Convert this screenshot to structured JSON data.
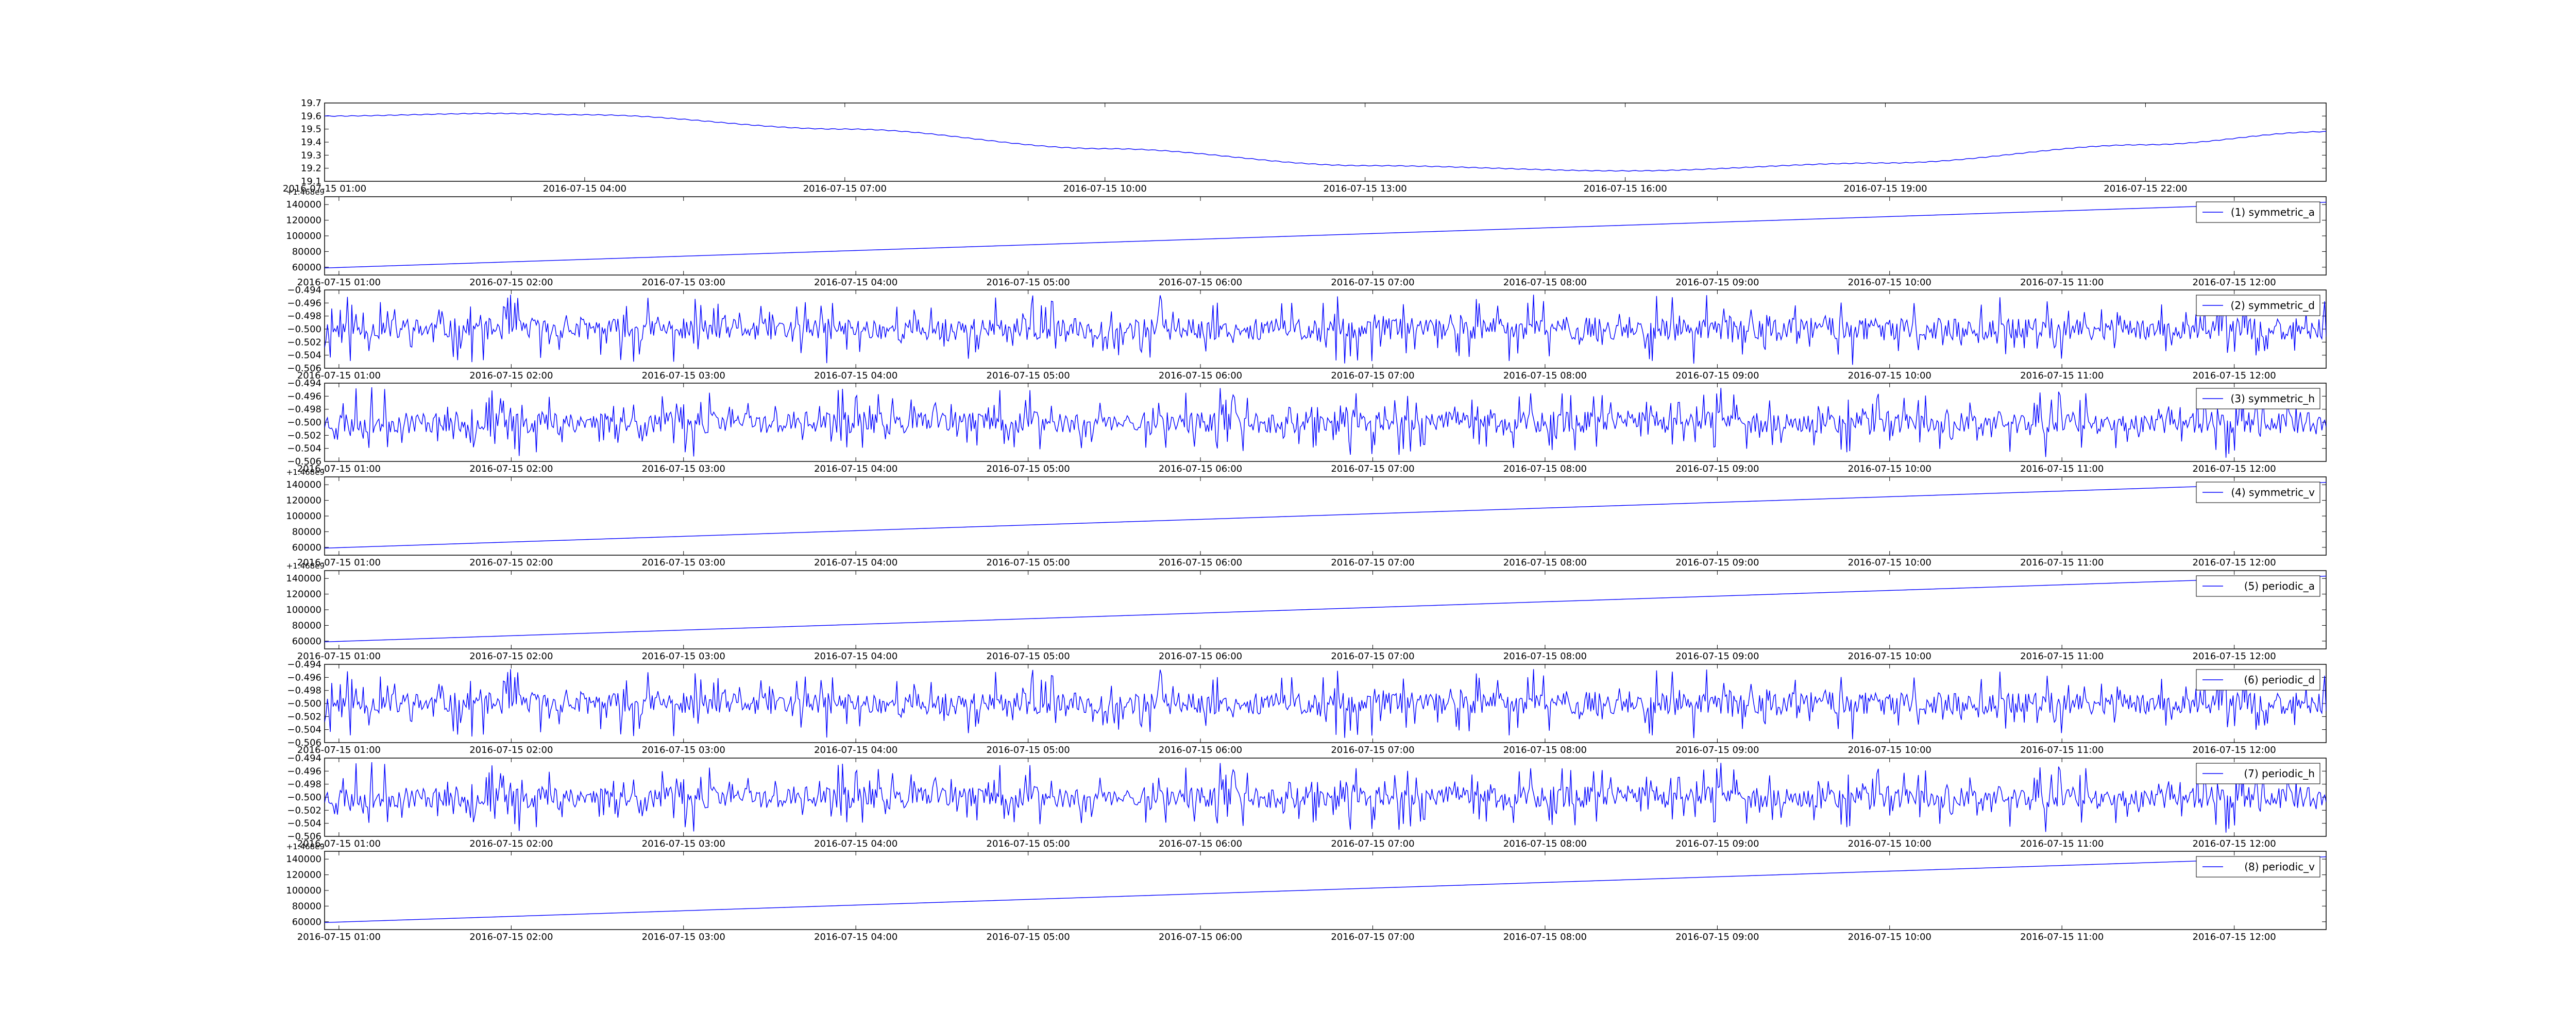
{
  "figure": {
    "background": "#ffffff",
    "line_color": "#0000ff"
  },
  "chart_data": [
    {
      "type": "line",
      "title": "",
      "xlabel": "",
      "ylabel": "",
      "ylim": [
        19.1,
        19.7
      ],
      "y_ticks": [
        "19.1",
        "19.2",
        "19.3",
        "19.4",
        "19.5",
        "19.6",
        "19.7"
      ],
      "x_ticks": [
        "2016-07-15 01:00",
        "2016-07-15 04:00",
        "2016-07-15 07:00",
        "2016-07-15 10:00",
        "2016-07-15 13:00",
        "2016-07-15 16:00",
        "2016-07-15 19:00",
        "2016-07-15 22:00"
      ],
      "x_range": [
        "2016-07-15 01:00",
        "2016-07-16 00:05"
      ],
      "offset_text": "",
      "legend": null,
      "series": [
        {
          "x": [
            "2016-07-15 01:00",
            "2016-07-15 03:00",
            "2016-07-15 04:00",
            "2016-07-15 07:00",
            "2016-07-15 10:00",
            "2016-07-15 13:00",
            "2016-07-15 16:00",
            "2016-07-15 19:00",
            "2016-07-15 22:00",
            "2016-07-16 00:05"
          ],
          "y": [
            19.6,
            19.62,
            19.61,
            19.5,
            19.35,
            19.22,
            19.18,
            19.24,
            19.38,
            19.48
          ]
        }
      ]
    },
    {
      "type": "line",
      "title": "",
      "ylim": [
        50000,
        150000
      ],
      "y_ticks": [
        "60000",
        "80000",
        "100000",
        "120000",
        "140000"
      ],
      "x_ticks": [
        "2016-07-15 01:00",
        "2016-07-15 02:00",
        "2016-07-15 03:00",
        "2016-07-15 04:00",
        "2016-07-15 05:00",
        "2016-07-15 06:00",
        "2016-07-15 07:00",
        "2016-07-15 08:00",
        "2016-07-15 09:00",
        "2016-07-15 10:00",
        "2016-07-15 11:00",
        "2016-07-15 12:00"
      ],
      "x_range": [
        "2016-07-15 00:55",
        "2016-07-15 12:32"
      ],
      "offset_text": "+1.468e9",
      "legend": "(1) symmetric_a",
      "legend_position": "top-right",
      "series": [
        {
          "x": [
            "2016-07-15 00:55",
            "2016-07-15 12:32"
          ],
          "y": [
            59000,
            143000
          ]
        }
      ]
    },
    {
      "type": "line",
      "title": "",
      "ylim": [
        -0.506,
        -0.494
      ],
      "y_ticks": [
        "−0.506",
        "−0.504",
        "−0.502",
        "−0.500",
        "−0.498",
        "−0.496",
        "−0.494"
      ],
      "x_ticks": [
        "2016-07-15 01:00",
        "2016-07-15 02:00",
        "2016-07-15 03:00",
        "2016-07-15 04:00",
        "2016-07-15 05:00",
        "2016-07-15 06:00",
        "2016-07-15 07:00",
        "2016-07-15 08:00",
        "2016-07-15 09:00",
        "2016-07-15 10:00",
        "2016-07-15 11:00",
        "2016-07-15 12:00"
      ],
      "x_range": [
        "2016-07-15 00:55",
        "2016-07-15 12:32"
      ],
      "offset_text": "",
      "legend": "(2) symmetric_d",
      "legend_position": "top-right",
      "series": [
        {
          "noise": {
            "center": -0.5,
            "amplitude": 0.0055,
            "points": 1400,
            "seed": 11
          }
        }
      ]
    },
    {
      "type": "line",
      "title": "",
      "ylim": [
        -0.506,
        -0.494
      ],
      "y_ticks": [
        "−0.506",
        "−0.504",
        "−0.502",
        "−0.500",
        "−0.498",
        "−0.496",
        "−0.494"
      ],
      "x_ticks": [
        "2016-07-15 01:00",
        "2016-07-15 02:00",
        "2016-07-15 03:00",
        "2016-07-15 04:00",
        "2016-07-15 05:00",
        "2016-07-15 06:00",
        "2016-07-15 07:00",
        "2016-07-15 08:00",
        "2016-07-15 09:00",
        "2016-07-15 10:00",
        "2016-07-15 11:00",
        "2016-07-15 12:00"
      ],
      "x_range": [
        "2016-07-15 00:55",
        "2016-07-15 12:32"
      ],
      "offset_text": "",
      "legend": "(3) symmetric_h",
      "legend_position": "top-right",
      "series": [
        {
          "noise": {
            "center": -0.5,
            "amplitude": 0.0055,
            "points": 1400,
            "seed": 23
          }
        }
      ]
    },
    {
      "type": "line",
      "title": "",
      "ylim": [
        50000,
        150000
      ],
      "y_ticks": [
        "60000",
        "80000",
        "100000",
        "120000",
        "140000"
      ],
      "x_ticks": [
        "2016-07-15 01:00",
        "2016-07-15 02:00",
        "2016-07-15 03:00",
        "2016-07-15 04:00",
        "2016-07-15 05:00",
        "2016-07-15 06:00",
        "2016-07-15 07:00",
        "2016-07-15 08:00",
        "2016-07-15 09:00",
        "2016-07-15 10:00",
        "2016-07-15 11:00",
        "2016-07-15 12:00"
      ],
      "x_range": [
        "2016-07-15 00:55",
        "2016-07-15 12:32"
      ],
      "offset_text": "+1.468e9",
      "legend": "(4) symmetric_v",
      "legend_position": "top-right",
      "series": [
        {
          "x": [
            "2016-07-15 00:55",
            "2016-07-15 12:32"
          ],
          "y": [
            59000,
            143000
          ]
        }
      ]
    },
    {
      "type": "line",
      "title": "",
      "ylim": [
        50000,
        150000
      ],
      "y_ticks": [
        "60000",
        "80000",
        "100000",
        "120000",
        "140000"
      ],
      "x_ticks": [
        "2016-07-15 01:00",
        "2016-07-15 02:00",
        "2016-07-15 03:00",
        "2016-07-15 04:00",
        "2016-07-15 05:00",
        "2016-07-15 06:00",
        "2016-07-15 07:00",
        "2016-07-15 08:00",
        "2016-07-15 09:00",
        "2016-07-15 10:00",
        "2016-07-15 11:00",
        "2016-07-15 12:00"
      ],
      "x_range": [
        "2016-07-15 00:55",
        "2016-07-15 12:32"
      ],
      "offset_text": "+1.468e9",
      "legend": "(5) periodic_a",
      "legend_position": "top-right",
      "series": [
        {
          "x": [
            "2016-07-15 00:55",
            "2016-07-15 12:32"
          ],
          "y": [
            59000,
            143000
          ]
        }
      ]
    },
    {
      "type": "line",
      "title": "",
      "ylim": [
        -0.506,
        -0.494
      ],
      "y_ticks": [
        "−0.506",
        "−0.504",
        "−0.502",
        "−0.500",
        "−0.498",
        "−0.496",
        "−0.494"
      ],
      "x_ticks": [
        "2016-07-15 01:00",
        "2016-07-15 02:00",
        "2016-07-15 03:00",
        "2016-07-15 04:00",
        "2016-07-15 05:00",
        "2016-07-15 06:00",
        "2016-07-15 07:00",
        "2016-07-15 08:00",
        "2016-07-15 09:00",
        "2016-07-15 10:00",
        "2016-07-15 11:00",
        "2016-07-15 12:00"
      ],
      "x_range": [
        "2016-07-15 00:55",
        "2016-07-15 12:32"
      ],
      "offset_text": "",
      "legend": "(6) periodic_d",
      "legend_position": "top-right",
      "series": [
        {
          "noise": {
            "center": -0.5,
            "amplitude": 0.0055,
            "points": 1400,
            "seed": 11
          }
        }
      ]
    },
    {
      "type": "line",
      "title": "",
      "ylim": [
        -0.506,
        -0.494
      ],
      "y_ticks": [
        "−0.506",
        "−0.504",
        "−0.502",
        "−0.500",
        "−0.498",
        "−0.496",
        "−0.494"
      ],
      "x_ticks": [
        "2016-07-15 01:00",
        "2016-07-15 02:00",
        "2016-07-15 03:00",
        "2016-07-15 04:00",
        "2016-07-15 05:00",
        "2016-07-15 06:00",
        "2016-07-15 07:00",
        "2016-07-15 08:00",
        "2016-07-15 09:00",
        "2016-07-15 10:00",
        "2016-07-15 11:00",
        "2016-07-15 12:00"
      ],
      "x_range": [
        "2016-07-15 00:55",
        "2016-07-15 12:32"
      ],
      "offset_text": "",
      "legend": "(7) periodic_h",
      "legend_position": "top-right",
      "series": [
        {
          "noise": {
            "center": -0.5,
            "amplitude": 0.0055,
            "points": 1400,
            "seed": 23
          }
        }
      ]
    },
    {
      "type": "line",
      "title": "",
      "ylim": [
        50000,
        150000
      ],
      "y_ticks": [
        "60000",
        "80000",
        "100000",
        "120000",
        "140000"
      ],
      "x_ticks": [
        "2016-07-15 01:00",
        "2016-07-15 02:00",
        "2016-07-15 03:00",
        "2016-07-15 04:00",
        "2016-07-15 05:00",
        "2016-07-15 06:00",
        "2016-07-15 07:00",
        "2016-07-15 08:00",
        "2016-07-15 09:00",
        "2016-07-15 10:00",
        "2016-07-15 11:00",
        "2016-07-15 12:00"
      ],
      "x_range": [
        "2016-07-15 00:55",
        "2016-07-15 12:32"
      ],
      "offset_text": "+1.468e9",
      "legend": "(8) periodic_v",
      "legend_position": "top-right",
      "series": [
        {
          "x": [
            "2016-07-15 00:55",
            "2016-07-15 12:32"
          ],
          "y": [
            59000,
            143000
          ]
        }
      ]
    }
  ]
}
